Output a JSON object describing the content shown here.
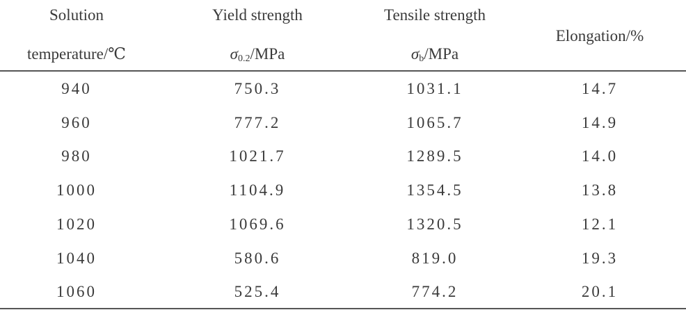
{
  "table": {
    "header": [
      {
        "lines": [
          "Solution",
          "temperature/℃"
        ]
      },
      {
        "title": "Yield strength",
        "symbol": "σ",
        "subscript": "0.2",
        "unit": "/MPa"
      },
      {
        "title": "Tensile strength",
        "symbol": "σ",
        "subscript": "b",
        "unit": "/MPa"
      },
      {
        "lines": [
          "Elongation/%"
        ]
      }
    ],
    "rows": [
      [
        "940",
        "750.3",
        "1031.1",
        "14.7"
      ],
      [
        "960",
        "777.2",
        "1065.7",
        "14.9"
      ],
      [
        "980",
        "1021.7",
        "1289.5",
        "14.0"
      ],
      [
        "1000",
        "1104.9",
        "1354.5",
        "13.8"
      ],
      [
        "1020",
        "1069.6",
        "1320.5",
        "12.1"
      ],
      [
        "1040",
        "580.6",
        "819.0",
        "19.3"
      ],
      [
        "1060",
        "525.4",
        "774.2",
        "20.1"
      ]
    ]
  }
}
